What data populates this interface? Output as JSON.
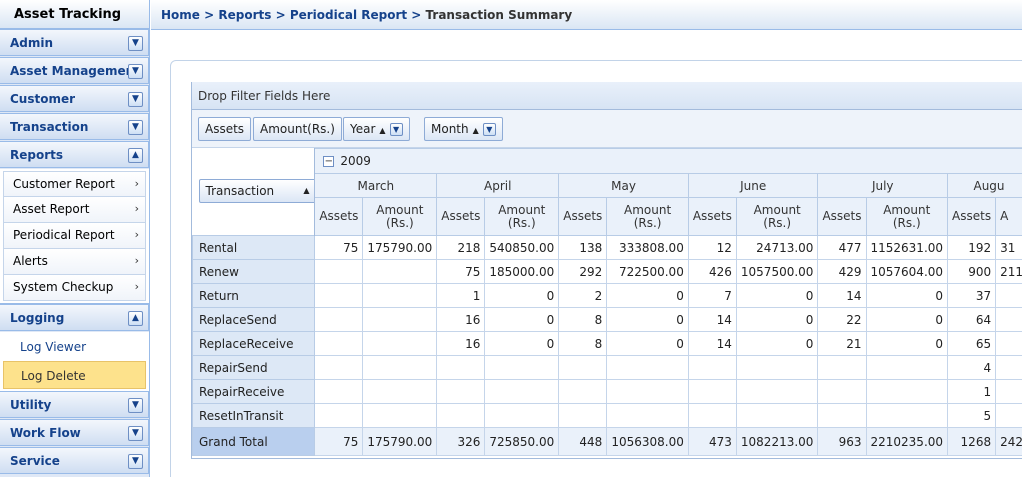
{
  "app": {
    "title": "Asset Tracking"
  },
  "breadcrumb": {
    "items": [
      "Home",
      "Reports",
      "Periodical Report"
    ],
    "current": "Transaction Summary",
    "separator": ">"
  },
  "sidebar": {
    "sections": [
      "Admin",
      "Asset Management",
      "Customer",
      "Transaction",
      "Reports"
    ],
    "reports_items": [
      "Customer Report",
      "Asset Report",
      "Periodical Report",
      "Alerts",
      "System Checkup"
    ],
    "logging": {
      "label": "Logging",
      "items": [
        "Log Viewer",
        "Log Delete"
      ],
      "selected": "Log Delete"
    },
    "lower_sections": [
      "Utility",
      "Work Flow",
      "Service"
    ]
  },
  "pivot": {
    "filter_placeholder": "Drop Filter Fields Here",
    "data_fields": [
      "Assets",
      "Amount(Rs.)"
    ],
    "column_fields": [
      "Year",
      "Month"
    ],
    "row_field": "Transaction",
    "year": "2009",
    "months": [
      "March",
      "April",
      "May",
      "June",
      "July",
      "Augu"
    ],
    "sub_headers": {
      "assets": "Assets",
      "amount_line1": "Amount",
      "amount_line2": "(Rs.)"
    },
    "partial_last_sub": "A",
    "rows": [
      {
        "label": "Rental",
        "cells": [
          "75",
          "175790.00",
          "218",
          "540850.00",
          "138",
          "333808.00",
          "12",
          "24713.00",
          "477",
          "1152631.00",
          "192",
          "31"
        ]
      },
      {
        "label": "Renew",
        "cells": [
          "",
          "",
          "75",
          "185000.00",
          "292",
          "722500.00",
          "426",
          "1057500.00",
          "429",
          "1057604.00",
          "900",
          "211"
        ]
      },
      {
        "label": "Return",
        "cells": [
          "",
          "",
          "1",
          "0",
          "2",
          "0",
          "7",
          "0",
          "14",
          "0",
          "37",
          ""
        ]
      },
      {
        "label": "ReplaceSend",
        "cells": [
          "",
          "",
          "16",
          "0",
          "8",
          "0",
          "14",
          "0",
          "22",
          "0",
          "64",
          ""
        ]
      },
      {
        "label": "ReplaceReceive",
        "cells": [
          "",
          "",
          "16",
          "0",
          "8",
          "0",
          "14",
          "0",
          "21",
          "0",
          "65",
          ""
        ]
      },
      {
        "label": "RepairSend",
        "cells": [
          "",
          "",
          "",
          "",
          "",
          "",
          "",
          "",
          "",
          "",
          "4",
          ""
        ]
      },
      {
        "label": "RepairReceive",
        "cells": [
          "",
          "",
          "",
          "",
          "",
          "",
          "",
          "",
          "",
          "",
          "1",
          ""
        ]
      },
      {
        "label": "ResetInTransit",
        "cells": [
          "",
          "",
          "",
          "",
          "",
          "",
          "",
          "",
          "",
          "",
          "5",
          ""
        ]
      }
    ],
    "grand_total": {
      "label": "Grand Total",
      "cells": [
        "75",
        "175790.00",
        "326",
        "725850.00",
        "448",
        "1056308.00",
        "473",
        "1082213.00",
        "963",
        "2210235.00",
        "1268",
        "242"
      ]
    }
  },
  "colors": {
    "accent": "#15428b",
    "selected_bg": "#fde28c",
    "header_bg": "#dfe8f6"
  },
  "icons": {
    "expand": "chevron-down-icon",
    "collapse": "chevron-up-icon",
    "submenu": "chevron-right-icon",
    "year_toggle": "minus-icon"
  }
}
